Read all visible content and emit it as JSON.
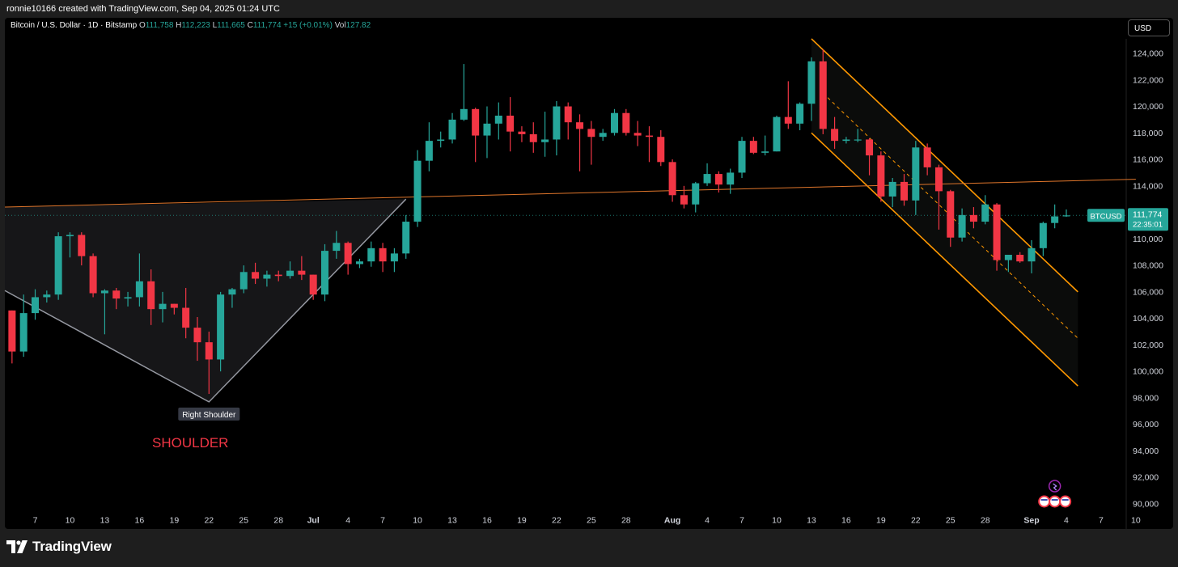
{
  "header": {
    "attribution": "ronnie10166 created with TradingView.com, Sep 04, 2025 01:24 UTC"
  },
  "legend": {
    "symbol": "Bitcoin / U.S. Dollar · 1D · Bitstamp",
    "o_label": "O",
    "o_value": "111,758",
    "h_label": "H",
    "h_value": "112,223",
    "l_label": "L",
    "l_value": "111,665",
    "c_label": "C",
    "c_value": "111,774",
    "change": "+15 (+0.01%)",
    "vol_label": "Vol",
    "vol_value": "127.82"
  },
  "currency_button": "USD",
  "footer": {
    "brand": "TradingView"
  },
  "annotations": {
    "right_shoulder": "Right Shoulder",
    "shoulder": "SHOULDER"
  },
  "colors": {
    "up": "#26a69a",
    "down": "#f23645",
    "channel": "#ff9800",
    "neckline": "#e0762b",
    "background": "#000000"
  },
  "chart_data": {
    "type": "candlestick",
    "symbol_tag": "BTCUSD",
    "last_price": "111,774",
    "countdown": "22:35:01",
    "ylim": [
      89500,
      125500
    ],
    "y_ticks": [
      90000,
      92000,
      94000,
      96000,
      98000,
      100000,
      102000,
      104000,
      106000,
      108000,
      110000,
      112000,
      114000,
      116000,
      118000,
      120000,
      122000,
      124000
    ],
    "y_tick_labels": [
      "90,000",
      "92,000",
      "94,000",
      "96,000",
      "98,000",
      "100,000",
      "102,000",
      "104,000",
      "106,000",
      "108,000",
      "110,000",
      "112,000",
      "114,000",
      "116,000",
      "118,000",
      "120,000",
      "122,000",
      "124,000"
    ],
    "x_ticks": [
      {
        "date": "2025-06-07",
        "label": "7"
      },
      {
        "date": "2025-06-10",
        "label": "10"
      },
      {
        "date": "2025-06-13",
        "label": "13"
      },
      {
        "date": "2025-06-16",
        "label": "16"
      },
      {
        "date": "2025-06-19",
        "label": "19"
      },
      {
        "date": "2025-06-22",
        "label": "22"
      },
      {
        "date": "2025-06-25",
        "label": "25"
      },
      {
        "date": "2025-06-28",
        "label": "28"
      },
      {
        "date": "2025-07-01",
        "label": "Jul",
        "bold": true
      },
      {
        "date": "2025-07-04",
        "label": "4"
      },
      {
        "date": "2025-07-07",
        "label": "7"
      },
      {
        "date": "2025-07-10",
        "label": "10"
      },
      {
        "date": "2025-07-13",
        "label": "13"
      },
      {
        "date": "2025-07-16",
        "label": "16"
      },
      {
        "date": "2025-07-19",
        "label": "19"
      },
      {
        "date": "2025-07-22",
        "label": "22"
      },
      {
        "date": "2025-07-25",
        "label": "25"
      },
      {
        "date": "2025-07-28",
        "label": "28"
      },
      {
        "date": "2025-08-01",
        "label": "Aug",
        "bold": true
      },
      {
        "date": "2025-08-04",
        "label": "4"
      },
      {
        "date": "2025-08-07",
        "label": "7"
      },
      {
        "date": "2025-08-10",
        "label": "10"
      },
      {
        "date": "2025-08-13",
        "label": "13"
      },
      {
        "date": "2025-08-16",
        "label": "16"
      },
      {
        "date": "2025-08-19",
        "label": "19"
      },
      {
        "date": "2025-08-22",
        "label": "22"
      },
      {
        "date": "2025-08-25",
        "label": "25"
      },
      {
        "date": "2025-08-28",
        "label": "28"
      },
      {
        "date": "2025-09-01",
        "label": "Sep",
        "bold": true
      },
      {
        "date": "2025-09-04",
        "label": "4"
      },
      {
        "date": "2025-09-07",
        "label": "7"
      },
      {
        "date": "2025-09-10",
        "label": "10"
      }
    ],
    "ohlc": [
      [
        "2025-06-05",
        104600,
        104600,
        100600,
        101500
      ],
      [
        "2025-06-06",
        101500,
        105800,
        101100,
        104400
      ],
      [
        "2025-06-07",
        104400,
        106200,
        103900,
        105600
      ],
      [
        "2025-06-08",
        105600,
        106100,
        105200,
        105800
      ],
      [
        "2025-06-09",
        105800,
        110500,
        105400,
        110200
      ],
      [
        "2025-06-10",
        110200,
        110500,
        108600,
        110300
      ],
      [
        "2025-06-11",
        110300,
        110500,
        108000,
        108700
      ],
      [
        "2025-06-12",
        108700,
        108900,
        105600,
        105900
      ],
      [
        "2025-06-13",
        105900,
        106200,
        102800,
        106100
      ],
      [
        "2025-06-14",
        106100,
        106300,
        104700,
        105500
      ],
      [
        "2025-06-15",
        105500,
        106000,
        104900,
        105600
      ],
      [
        "2025-06-16",
        105600,
        108900,
        104900,
        106800
      ],
      [
        "2025-06-17",
        106800,
        107700,
        103500,
        104700
      ],
      [
        "2025-06-18",
        104700,
        106000,
        103700,
        105100
      ],
      [
        "2025-06-19",
        105100,
        105100,
        104300,
        104800
      ],
      [
        "2025-06-20",
        104800,
        106300,
        102500,
        103300
      ],
      [
        "2025-06-21",
        103300,
        104100,
        100800,
        102200
      ],
      [
        "2025-06-22",
        102200,
        103000,
        98300,
        100900
      ],
      [
        "2025-06-23",
        100900,
        106000,
        100000,
        105800
      ],
      [
        "2025-06-24",
        105800,
        106300,
        104800,
        106200
      ],
      [
        "2025-06-25",
        106200,
        108000,
        105900,
        107500
      ],
      [
        "2025-06-26",
        107500,
        108200,
        106600,
        107000
      ],
      [
        "2025-06-27",
        107000,
        107600,
        106400,
        107300
      ],
      [
        "2025-06-28",
        107300,
        107600,
        106800,
        107200
      ],
      [
        "2025-06-29",
        107200,
        108300,
        107000,
        107600
      ],
      [
        "2025-06-30",
        107600,
        108700,
        106900,
        107300
      ],
      [
        "2025-07-01",
        107300,
        107300,
        105400,
        105800
      ],
      [
        "2025-07-02",
        105800,
        109600,
        105300,
        109100
      ],
      [
        "2025-07-03",
        109100,
        110600,
        108500,
        109700
      ],
      [
        "2025-07-04",
        109700,
        109800,
        107300,
        108100
      ],
      [
        "2025-07-05",
        108100,
        108500,
        107800,
        108300
      ],
      [
        "2025-07-06",
        108300,
        109800,
        107900,
        109300
      ],
      [
        "2025-07-07",
        109300,
        109700,
        107500,
        108300
      ],
      [
        "2025-07-08",
        108300,
        109300,
        107500,
        108900
      ],
      [
        "2025-07-09",
        108900,
        111800,
        108500,
        111300
      ],
      [
        "2025-07-10",
        111300,
        116700,
        110900,
        115900
      ],
      [
        "2025-07-11",
        115900,
        118800,
        115100,
        117400
      ],
      [
        "2025-07-12",
        117400,
        118100,
        116900,
        117500
      ],
      [
        "2025-07-13",
        117500,
        119500,
        117200,
        119000
      ],
      [
        "2025-07-14",
        119000,
        123200,
        118900,
        119800
      ],
      [
        "2025-07-15",
        119800,
        119900,
        115800,
        117800
      ],
      [
        "2025-07-16",
        117800,
        120000,
        116100,
        118700
      ],
      [
        "2025-07-17",
        118700,
        120300,
        117500,
        119300
      ],
      [
        "2025-07-18",
        119300,
        120700,
        116600,
        118100
      ],
      [
        "2025-07-19",
        118100,
        118500,
        117300,
        117900
      ],
      [
        "2025-07-20",
        117900,
        118800,
        116500,
        117300
      ],
      [
        "2025-07-21",
        117300,
        119600,
        116200,
        117500
      ],
      [
        "2025-07-22",
        117500,
        120400,
        116300,
        120000
      ],
      [
        "2025-07-23",
        120000,
        120300,
        117500,
        118800
      ],
      [
        "2025-07-24",
        118800,
        119400,
        115100,
        118300
      ],
      [
        "2025-07-25",
        118300,
        118900,
        115600,
        117700
      ],
      [
        "2025-07-26",
        117700,
        118300,
        117400,
        118000
      ],
      [
        "2025-07-27",
        118000,
        119800,
        117800,
        119500
      ],
      [
        "2025-07-28",
        119500,
        119800,
        117800,
        118000
      ],
      [
        "2025-07-29",
        118000,
        118900,
        117000,
        117800
      ],
      [
        "2025-07-30",
        117800,
        118500,
        115800,
        117700
      ],
      [
        "2025-07-31",
        117700,
        118200,
        115500,
        115800
      ],
      [
        "2025-08-01",
        115800,
        116000,
        112800,
        113300
      ],
      [
        "2025-08-02",
        113300,
        114000,
        112300,
        112600
      ],
      [
        "2025-08-03",
        112600,
        114300,
        112000,
        114200
      ],
      [
        "2025-08-04",
        114200,
        115700,
        114000,
        114900
      ],
      [
        "2025-08-05",
        114900,
        115100,
        113500,
        114100
      ],
      [
        "2025-08-06",
        114100,
        115300,
        113400,
        115000
      ],
      [
        "2025-08-07",
        115000,
        117700,
        114600,
        117400
      ],
      [
        "2025-08-08",
        117400,
        117700,
        116400,
        116500
      ],
      [
        "2025-08-09",
        116500,
        117800,
        116300,
        116600
      ],
      [
        "2025-08-10",
        116600,
        119300,
        116600,
        119200
      ],
      [
        "2025-08-11",
        119200,
        121900,
        118300,
        118700
      ],
      [
        "2025-08-12",
        118700,
        120300,
        118200,
        120200
      ],
      [
        "2025-08-13",
        120200,
        123700,
        118900,
        123400
      ],
      [
        "2025-08-14",
        123400,
        124300,
        117900,
        118300
      ],
      [
        "2025-08-15",
        118300,
        119200,
        116800,
        117400
      ],
      [
        "2025-08-16",
        117400,
        117700,
        117200,
        117500
      ],
      [
        "2025-08-17",
        117500,
        118300,
        117300,
        117500
      ],
      [
        "2025-08-18",
        117500,
        117600,
        114800,
        116300
      ],
      [
        "2025-08-19",
        116300,
        116600,
        112800,
        113200
      ],
      [
        "2025-08-20",
        113200,
        114600,
        112400,
        114300
      ],
      [
        "2025-08-21",
        114300,
        114900,
        112500,
        112900
      ],
      [
        "2025-08-22",
        112900,
        117400,
        111800,
        116900
      ],
      [
        "2025-08-23",
        116900,
        117200,
        114800,
        115400
      ],
      [
        "2025-08-24",
        115400,
        115600,
        110700,
        113600
      ],
      [
        "2025-08-25",
        113600,
        113700,
        109400,
        110100
      ],
      [
        "2025-08-26",
        110100,
        112300,
        109800,
        111800
      ],
      [
        "2025-08-27",
        111800,
        112400,
        110800,
        111300
      ],
      [
        "2025-08-28",
        111300,
        113300,
        111100,
        112600
      ],
      [
        "2025-08-29",
        112600,
        112700,
        107600,
        108400
      ],
      [
        "2025-08-30",
        108400,
        108800,
        107500,
        108800
      ],
      [
        "2025-08-31",
        108800,
        109000,
        108200,
        108300
      ],
      [
        "2025-09-01",
        108300,
        109900,
        107400,
        109300
      ],
      [
        "2025-09-02",
        109300,
        111300,
        108700,
        111200
      ],
      [
        "2025-09-03",
        111200,
        112600,
        110800,
        111700
      ],
      [
        "2025-09-04",
        111758,
        112223,
        111665,
        111774
      ]
    ],
    "neckline": {
      "from": [
        "2025-06-05",
        112400
      ],
      "to": [
        "2025-09-10",
        114500
      ]
    },
    "channel": {
      "upper": [
        [
          "2025-08-13",
          125100
        ],
        [
          "2025-09-05",
          106000
        ]
      ],
      "middle": [
        [
          "2025-08-14",
          121000
        ],
        [
          "2025-09-05",
          102500
        ]
      ],
      "lower": [
        [
          "2025-08-13",
          118000
        ],
        [
          "2025-09-05",
          98900
        ]
      ]
    },
    "shoulder_shape": [
      [
        "2025-06-05",
        106100
      ],
      [
        "2025-06-22",
        97700
      ],
      [
        "2025-07-09",
        113000
      ]
    ]
  }
}
